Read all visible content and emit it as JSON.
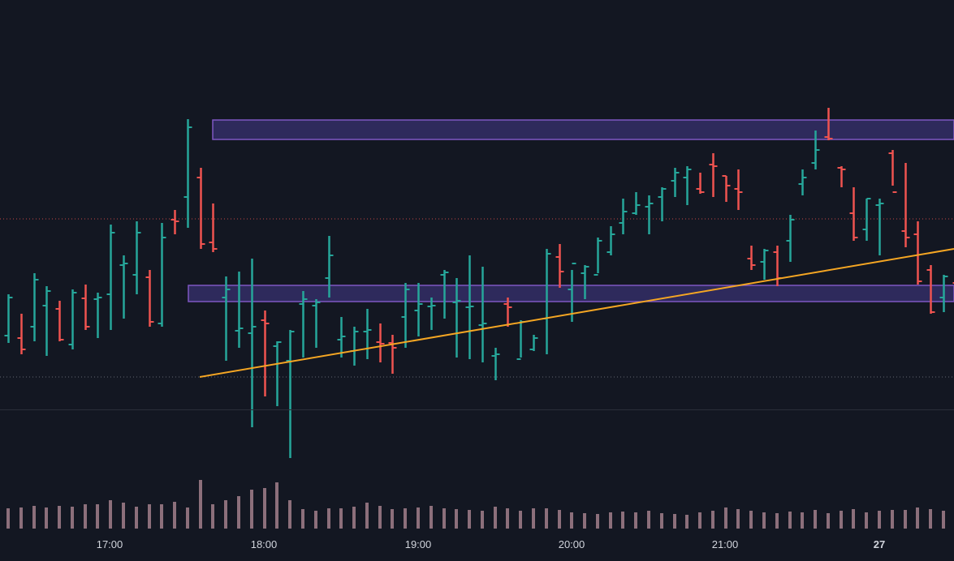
{
  "colors": {
    "background": "#131722",
    "up": "#26a69a",
    "down": "#ef5350",
    "volume": "#8c6f7b",
    "zone_fill": "#2e2a5c",
    "zone_stroke": "#7e57c2",
    "trendline": "#f5a623",
    "pane_divider": "#2a2e39",
    "ref_line_red": "#ef5350",
    "ref_line_gray": "#787b86"
  },
  "chart_data": {
    "type": "ohlc",
    "x_ticks": [
      "17:00",
      "18:00",
      "19:00",
      "20:00",
      "21:00",
      "27"
    ],
    "x_tick_bold": [
      false,
      false,
      false,
      false,
      false,
      true
    ],
    "grid": false,
    "bar_minutes": 5,
    "x_start": "16:45",
    "bars": [
      {
        "o": 25.5,
        "h": 51,
        "l": 21,
        "c": 49,
        "v": 25
      },
      {
        "o": 24,
        "h": 39,
        "l": 14,
        "c": 17,
        "v": 26
      },
      {
        "o": 31,
        "h": 64,
        "l": 22,
        "c": 60,
        "v": 28
      },
      {
        "o": 44,
        "h": 56,
        "l": 13,
        "c": 53,
        "v": 26
      },
      {
        "o": 42,
        "h": 47,
        "l": 22,
        "c": 23,
        "v": 28
      },
      {
        "o": 20,
        "h": 54,
        "l": 17,
        "c": 52,
        "v": 27
      },
      {
        "o": 48.5,
        "h": 57,
        "l": 29,
        "c": 31,
        "v": 30
      },
      {
        "o": 48,
        "h": 52,
        "l": 24,
        "c": 49,
        "v": 30
      },
      {
        "o": 51,
        "h": 94,
        "l": 29,
        "c": 89,
        "v": 35
      },
      {
        "o": 69,
        "h": 75,
        "l": 36,
        "c": 70,
        "v": 32
      },
      {
        "o": 63,
        "h": 96,
        "l": 51,
        "c": 89,
        "v": 27
      },
      {
        "o": 61.5,
        "h": 66,
        "l": 31,
        "c": 34,
        "v": 30
      },
      {
        "o": 33,
        "h": 95,
        "l": 31,
        "c": 86,
        "v": 30
      },
      {
        "o": 97,
        "h": 103,
        "l": 88,
        "c": 96,
        "v": 33
      },
      {
        "o": 111,
        "h": 159,
        "l": 92,
        "c": 154,
        "v": 26
      },
      {
        "o": 123,
        "h": 129,
        "l": 79,
        "c": 82,
        "v": 60
      },
      {
        "o": 83,
        "h": 107,
        "l": 77,
        "c": 79,
        "v": 30
      },
      {
        "o": 49,
        "h": 62,
        "l": 10,
        "c": 54,
        "v": 35
      },
      {
        "o": 28.5,
        "h": 65,
        "l": 18,
        "c": 30,
        "v": 40
      },
      {
        "o": 27,
        "h": 73,
        "l": -31,
        "c": 31,
        "v": 48
      },
      {
        "o": 35,
        "h": 41,
        "l": -12,
        "c": 33,
        "v": 50
      },
      {
        "o": 19,
        "h": 22,
        "l": -18,
        "c": 21.5,
        "v": 57
      },
      {
        "o": 10,
        "h": 29,
        "l": -50,
        "c": 28,
        "v": 35
      },
      {
        "o": 45,
        "h": 53,
        "l": 12,
        "c": 48,
        "v": 24
      },
      {
        "o": 44,
        "h": 48,
        "l": 18,
        "c": 46,
        "v": 22
      },
      {
        "o": 61,
        "h": 87,
        "l": 49,
        "c": 75,
        "v": 25
      },
      {
        "o": 23,
        "h": 37,
        "l": 12,
        "c": 25,
        "v": 25
      },
      {
        "o": 16,
        "h": 31,
        "l": 7,
        "c": 28,
        "v": 27
      },
      {
        "o": 28,
        "h": 42,
        "l": 11,
        "c": 29,
        "v": 32
      },
      {
        "o": 21.5,
        "h": 33,
        "l": 9,
        "c": 20.5,
        "v": 28
      },
      {
        "o": 21,
        "h": 26,
        "l": 2,
        "c": 18,
        "v": 24
      },
      {
        "o": 37,
        "h": 58,
        "l": 18,
        "c": 54,
        "v": 25
      },
      {
        "o": 41,
        "h": 58,
        "l": 25,
        "c": 45,
        "v": 26
      },
      {
        "o": 43.5,
        "h": 49,
        "l": 29,
        "c": 44,
        "v": 28
      },
      {
        "o": 63,
        "h": 66,
        "l": 36,
        "c": 64.5,
        "v": 25
      },
      {
        "o": 46,
        "h": 61,
        "l": 12,
        "c": 47,
        "v": 24
      },
      {
        "o": 43,
        "h": 75,
        "l": 11,
        "c": 43.5,
        "v": 23
      },
      {
        "o": 32,
        "h": 68,
        "l": 9,
        "c": 33,
        "v": 22
      },
      {
        "o": 13,
        "h": 18,
        "l": -2,
        "c": 14,
        "v": 27
      },
      {
        "o": 45,
        "h": 49,
        "l": 31,
        "c": 43,
        "v": 25
      },
      {
        "o": 11,
        "h": 35,
        "l": 12,
        "c": 34,
        "v": 22
      },
      {
        "o": 17,
        "h": 26,
        "l": 16,
        "c": 24,
        "v": 25
      }
    ],
    "volume_pane_bars": [
      {
        "x_index": 21,
        "v": 31
      },
      {
        "x_index": 22,
        "v": 33
      }
    ],
    "session_2": {
      "bars": [
        {
          "o": 36,
          "h": 79,
          "l": 14,
          "c": 76,
          "v": 25
        },
        {
          "o": 74,
          "h": 82,
          "l": 55,
          "c": 65,
          "v": 23
        },
        {
          "o": 54,
          "h": 66,
          "l": 34,
          "c": 70,
          "v": 20
        },
        {
          "o": 64,
          "h": 69,
          "l": 48,
          "c": 68,
          "v": 19
        },
        {
          "o": 63,
          "h": 86,
          "l": 64,
          "c": 84,
          "v": 18
        },
        {
          "o": 77,
          "h": 93,
          "l": 75,
          "c": 88,
          "v": 20
        },
        {
          "o": 95,
          "h": 110,
          "l": 88,
          "c": 102,
          "v": 21
        },
        {
          "o": 101,
          "h": 114,
          "l": 100,
          "c": 106,
          "v": 20
        },
        {
          "o": 105,
          "h": 112,
          "l": 88,
          "c": 107,
          "v": 22
        },
        {
          "o": 111,
          "h": 117,
          "l": 96,
          "c": 116,
          "v": 19
        },
        {
          "o": 121,
          "h": 129,
          "l": 111,
          "c": 126,
          "v": 18
        },
        {
          "o": 123,
          "h": 130,
          "l": 106,
          "c": 128,
          "v": 17
        },
        {
          "o": 116,
          "h": 126,
          "l": 113,
          "c": 114,
          "v": 20
        },
        {
          "o": 131,
          "h": 138,
          "l": 111,
          "c": 130,
          "v": 22
        },
        {
          "o": 124,
          "h": 124,
          "l": 108,
          "c": 118,
          "v": 26
        },
        {
          "o": 116,
          "h": 128,
          "l": 103,
          "c": 114,
          "v": 24
        },
        {
          "o": 73,
          "h": 81,
          "l": 66,
          "c": 69,
          "v": 22
        },
        {
          "o": 71,
          "h": 79,
          "l": 60,
          "c": 78,
          "v": 20
        },
        {
          "o": 77,
          "h": 81,
          "l": 56,
          "c": 61,
          "v": 19
        },
        {
          "o": 84,
          "h": 100,
          "l": 71,
          "c": 97,
          "v": 21
        },
        {
          "o": 119,
          "h": 128,
          "l": 112,
          "c": 123,
          "v": 20
        },
        {
          "o": 132,
          "h": 152,
          "l": 128,
          "c": 140,
          "v": 23
        },
        {
          "o": 148,
          "h": 166,
          "l": 146,
          "c": 147,
          "v": 19
        },
        {
          "o": 129,
          "h": 130,
          "l": 117,
          "c": 128,
          "v": 22
        },
        {
          "o": 101,
          "h": 117,
          "l": 84,
          "c": 86,
          "v": 24
        },
        {
          "o": 91,
          "h": 110,
          "l": 84,
          "c": 110,
          "v": 20
        },
        {
          "o": 106,
          "h": 110,
          "l": 75,
          "c": 107,
          "v": 22
        },
        {
          "o": 138,
          "h": 140,
          "l": 118,
          "c": 114,
          "v": 23
        },
        {
          "o": 90,
          "h": 132,
          "l": 80,
          "c": 86,
          "v": 23
        },
        {
          "o": 88,
          "h": 96,
          "l": 57,
          "c": 59,
          "v": 26
        },
        {
          "o": 66,
          "h": 69,
          "l": 39,
          "c": 40,
          "v": 24
        },
        {
          "o": 49,
          "h": 63,
          "l": 40,
          "c": 62,
          "v": 22
        },
        {
          "o": 58,
          "h": 58,
          "l": 40,
          "c": 55,
          "v": 25
        },
        {
          "o": 50,
          "h": 81,
          "l": 34,
          "c": 80,
          "v": 22
        },
        {
          "o": 89,
          "h": 125,
          "l": 73,
          "c": 85,
          "v": 19
        }
      ]
    }
  }
}
